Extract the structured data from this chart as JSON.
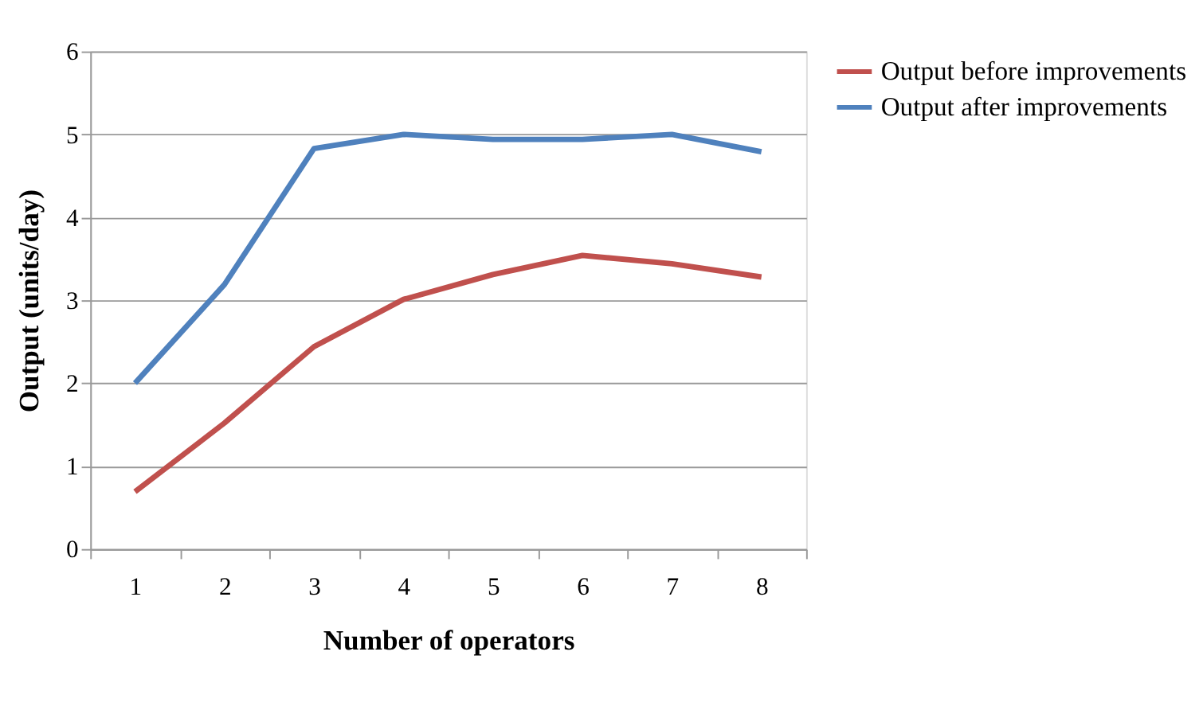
{
  "chart_data": {
    "type": "line",
    "xlabel": "Number of operators",
    "ylabel": "Output  (units/day)",
    "categories": [
      "1",
      "2",
      "3",
      "4",
      "5",
      "6",
      "7",
      "8"
    ],
    "series": [
      {
        "name": "Output before improvements",
        "color": "#c0504d",
        "values": [
          0.69,
          1.52,
          2.44,
          3.01,
          3.31,
          3.54,
          3.44,
          3.28
        ]
      },
      {
        "name": "Output after improvements",
        "color": "#4f81bd",
        "values": [
          2.0,
          3.19,
          4.83,
          5.0,
          4.94,
          4.94,
          5.0,
          4.79
        ]
      }
    ],
    "ylim": [
      0,
      6
    ],
    "yticks": [
      0,
      1,
      2,
      3,
      4,
      5,
      6
    ],
    "grid": "y",
    "legend": "right",
    "line_style": "solid",
    "marker": "none"
  }
}
